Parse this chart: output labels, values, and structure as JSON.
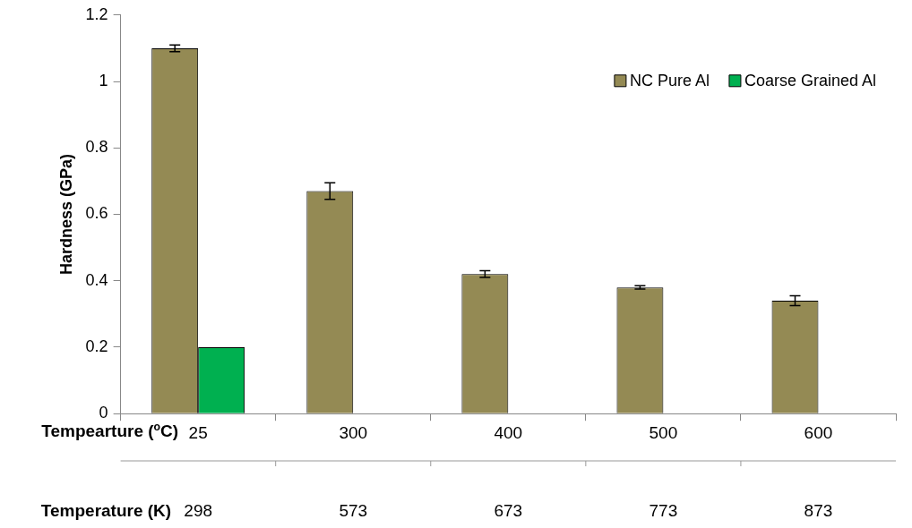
{
  "chart_data": {
    "type": "bar",
    "xlabel": "Tempearture ($^{o}$C)",
    "ylabel": "Hardness (GPa)",
    "categories": [
      "25",
      "300",
      "400",
      "500",
      "600"
    ],
    "series": [
      {
        "name": "NC Pure Al",
        "color": "#948a54",
        "values": [
          1.1,
          0.67,
          0.42,
          0.38,
          0.34
        ],
        "errors": [
          0.01,
          0.025,
          0.01,
          0.005,
          0.015
        ]
      },
      {
        "name": "Coarse Grained Al",
        "color": "#00b050",
        "values": [
          0.2,
          null,
          null,
          null,
          null
        ]
      }
    ],
    "ylim": [
      0,
      1.2
    ],
    "yticks": [
      0,
      0.2,
      0.4,
      0.6,
      0.8,
      1,
      1.2
    ],
    "grid": false,
    "legend": "top right",
    "annotations": [
      "Temperature (K)",
      "298",
      "573",
      "673",
      "773",
      "873"
    ]
  }
}
